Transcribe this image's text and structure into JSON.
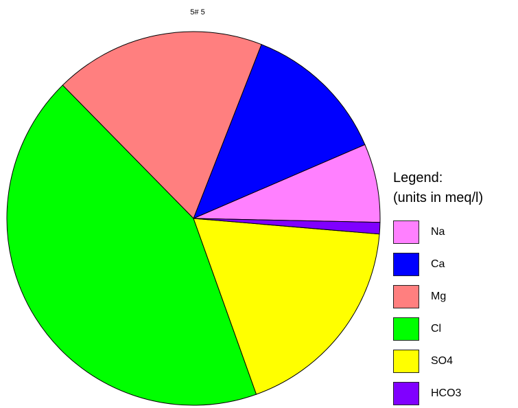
{
  "chart_data": {
    "type": "pie",
    "title": "5# 5",
    "legend": {
      "title_line1": "Legend:",
      "title_line2": "(units in meq/l)",
      "placement": "right"
    },
    "slices": [
      {
        "name": "Na",
        "value": 6.8,
        "color": "#ff80ff"
      },
      {
        "name": "Ca",
        "value": 12.6,
        "color": "#0000ff"
      },
      {
        "name": "Mg",
        "value": 18.3,
        "color": "#ff7f7f"
      },
      {
        "name": "Cl",
        "value": 43.1,
        "color": "#00ff00"
      },
      {
        "name": "SO4",
        "value": 18.2,
        "color": "#ffff00"
      },
      {
        "name": "HCO3",
        "value": 1.0,
        "color": "#8000ff"
      }
    ]
  }
}
